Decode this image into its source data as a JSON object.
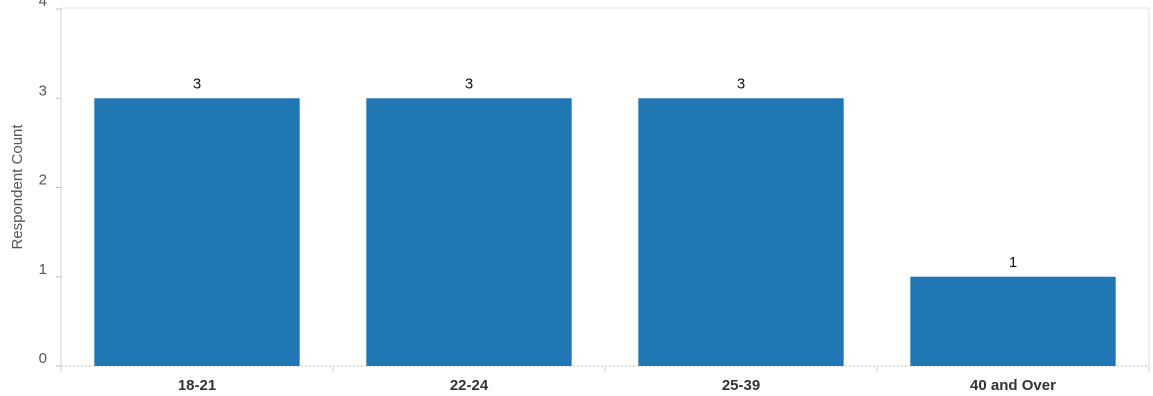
{
  "chart_data": {
    "type": "bar",
    "categories": [
      "18-21",
      "22-24",
      "25-39",
      "40 and Over"
    ],
    "values": [
      3,
      3,
      3,
      1
    ],
    "data_labels": [
      "3",
      "3",
      "3",
      "1"
    ],
    "ylabel": "Respondent Count",
    "xlabel": "",
    "ylim": [
      0,
      4
    ],
    "yticks": [
      0,
      1,
      2,
      3,
      4
    ],
    "grid": false,
    "bar_color": "#1f77b4"
  }
}
